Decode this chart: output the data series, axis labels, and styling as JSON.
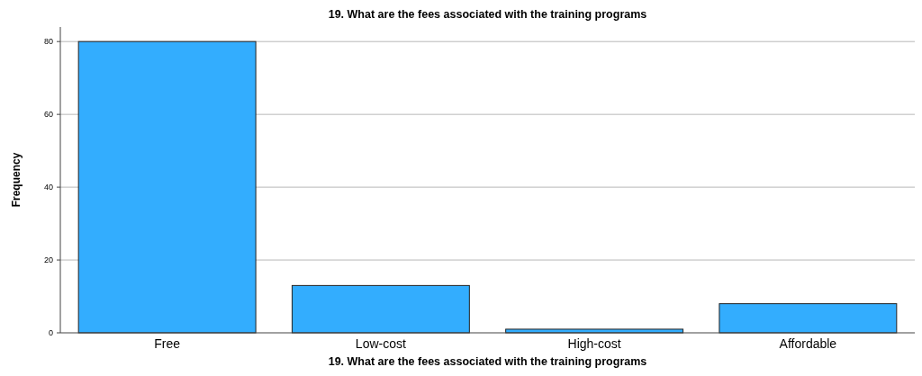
{
  "chart_data": {
    "type": "bar",
    "title": "19. What are the fees associated with the training programs",
    "xlabel": "19. What are the fees associated with the training programs",
    "ylabel": "Frequency",
    "categories": [
      "Free",
      "Low-cost",
      "High-cost",
      "Affordable"
    ],
    "values": [
      80,
      13,
      1,
      8
    ],
    "color": "#33adfe",
    "ylim": [
      0,
      84
    ],
    "yticks": [
      0,
      20,
      40,
      60,
      80
    ],
    "grid": "y"
  }
}
